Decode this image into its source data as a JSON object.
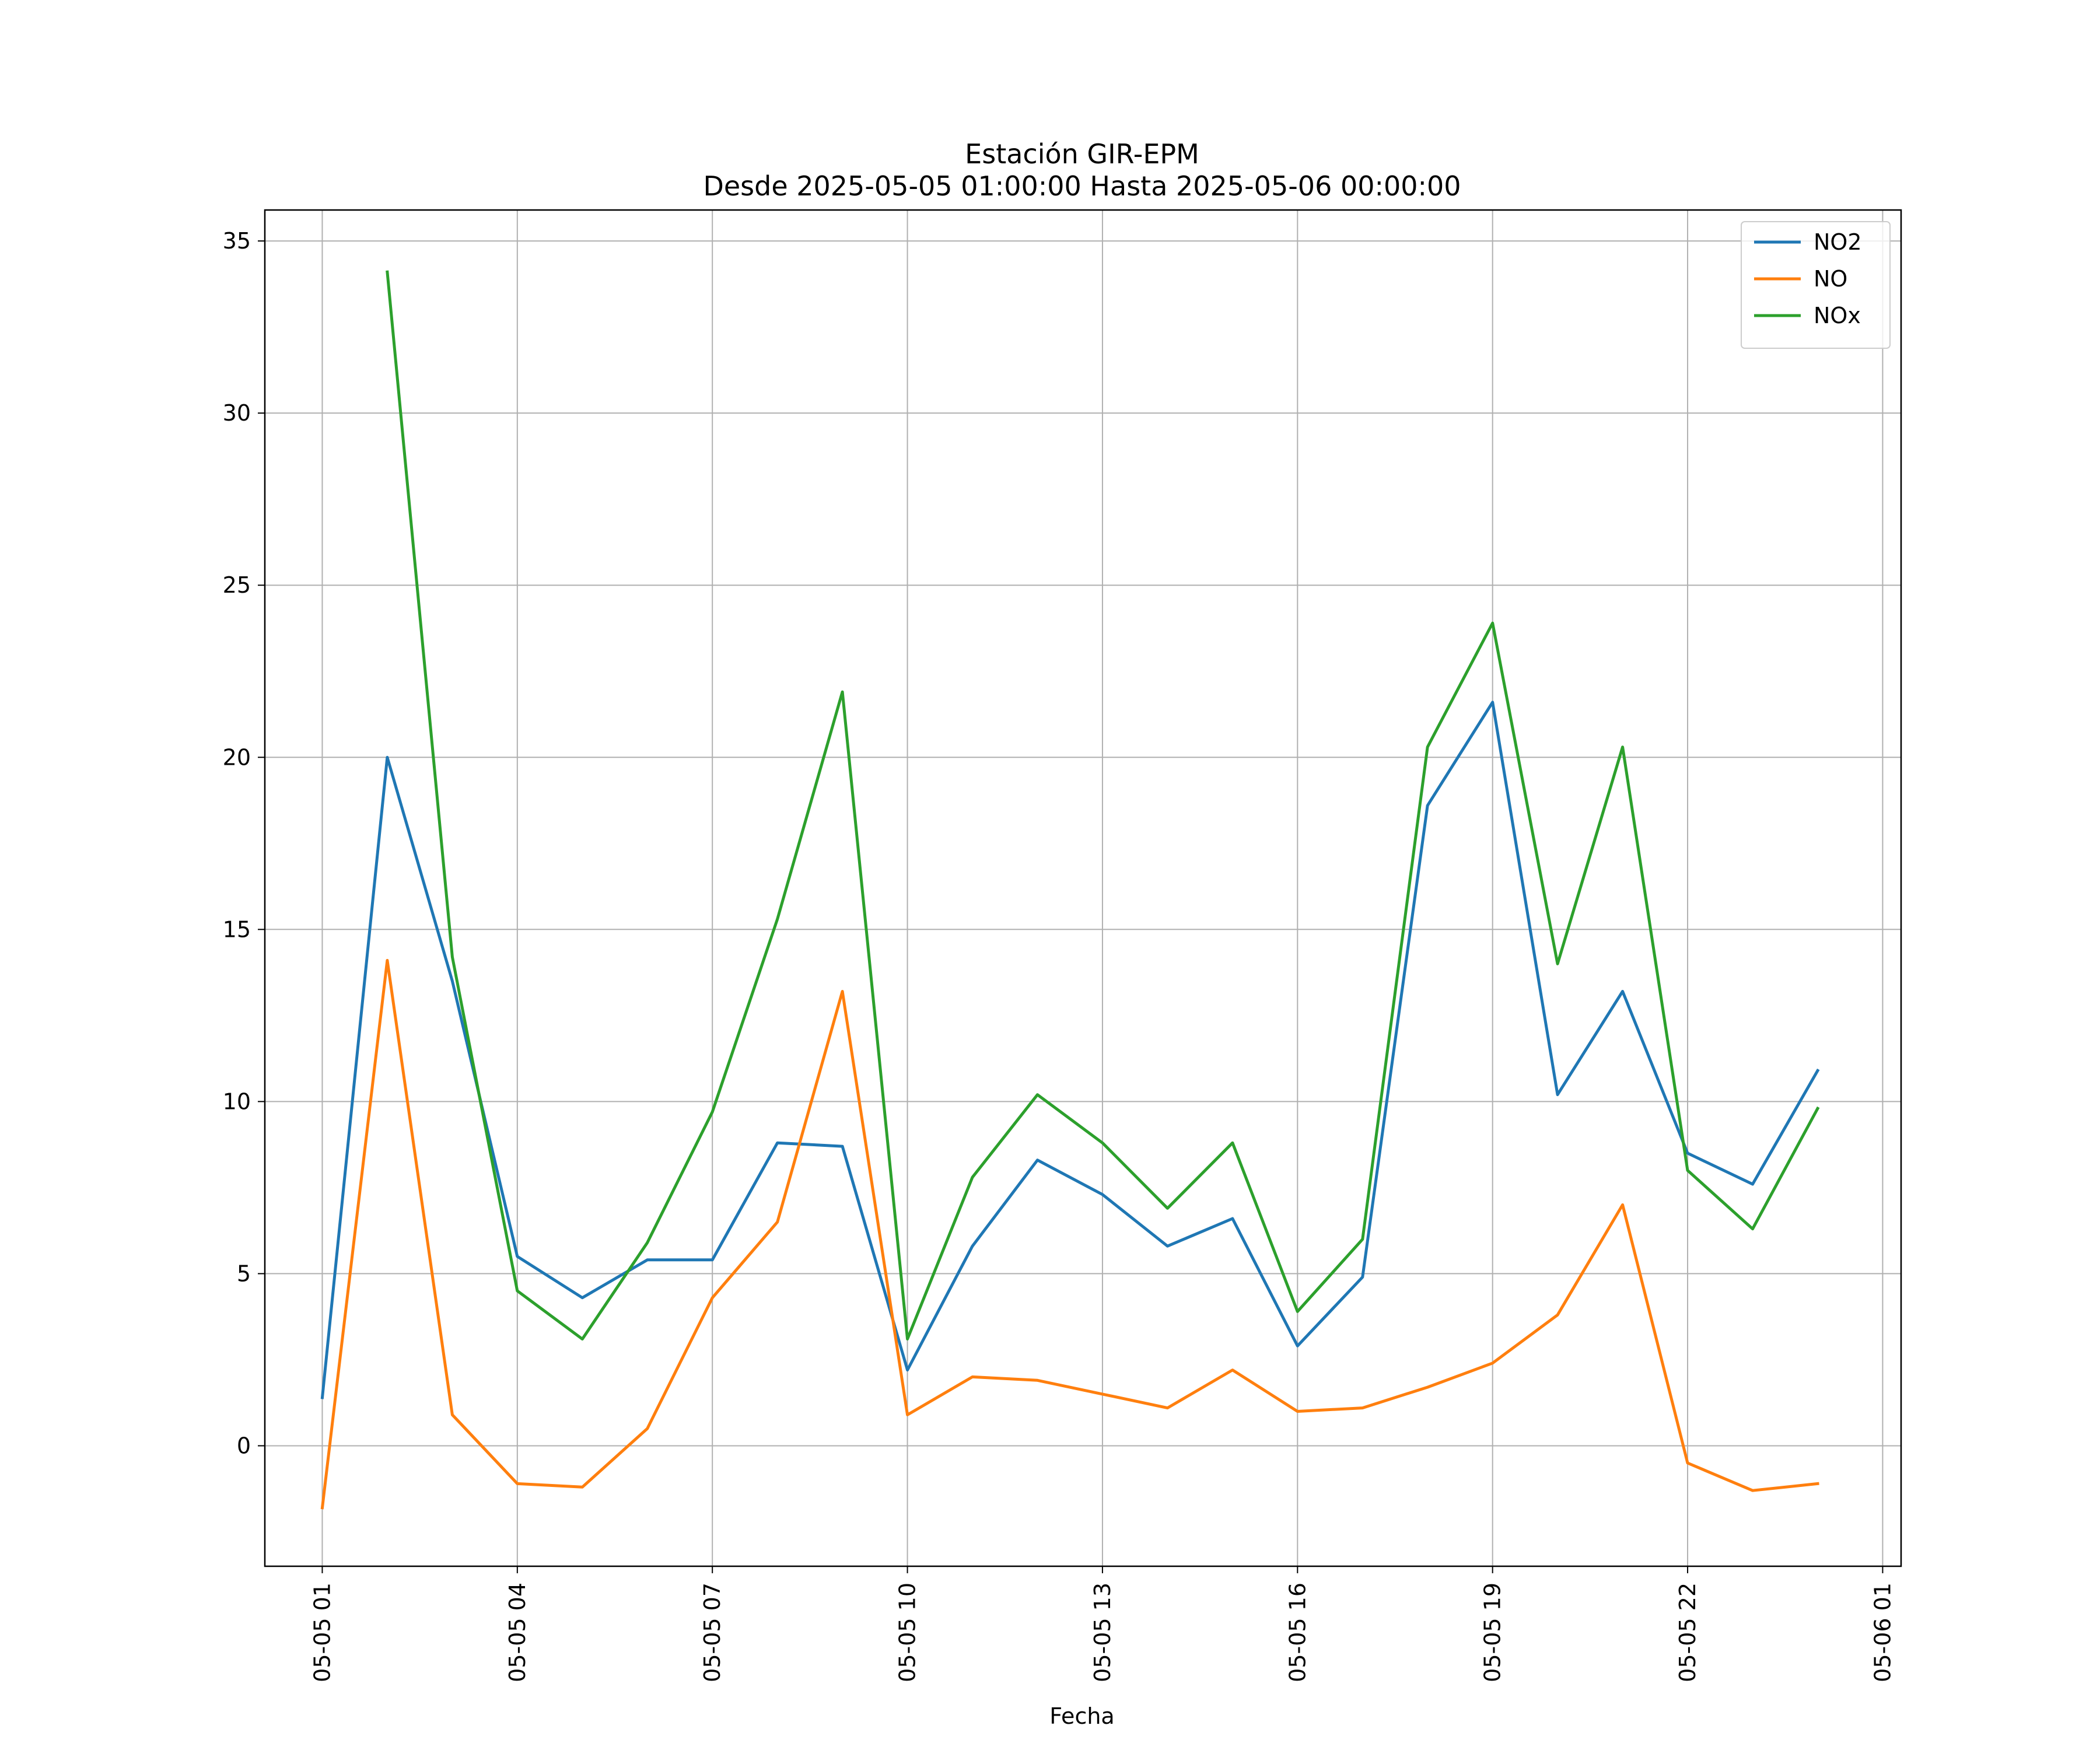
{
  "chart_data": {
    "type": "line",
    "title": "Estación GIR-EPM",
    "subtitle": "Desde 2025-05-05 01:00:00 Hasta 2025-05-06 00:00:00",
    "xlabel": "Fecha",
    "ylabel": "",
    "x": [
      "2025-05-05 01:00",
      "2025-05-05 02:00",
      "2025-05-05 03:00",
      "2025-05-05 04:00",
      "2025-05-05 05:00",
      "2025-05-05 06:00",
      "2025-05-05 07:00",
      "2025-05-05 08:00",
      "2025-05-05 09:00",
      "2025-05-05 10:00",
      "2025-05-05 11:00",
      "2025-05-05 12:00",
      "2025-05-05 13:00",
      "2025-05-05 14:00",
      "2025-05-05 15:00",
      "2025-05-05 16:00",
      "2025-05-05 17:00",
      "2025-05-05 18:00",
      "2025-05-05 19:00",
      "2025-05-05 20:00",
      "2025-05-05 21:00",
      "2025-05-05 22:00",
      "2025-05-05 23:00",
      "2025-05-06 00:00"
    ],
    "xlim": [
      "2025-05-05 00:07",
      "2025-05-06 01:17"
    ],
    "xticks": [
      "2025-05-05 01:00",
      "2025-05-05 04:00",
      "2025-05-05 07:00",
      "2025-05-05 10:00",
      "2025-05-05 13:00",
      "2025-05-05 16:00",
      "2025-05-05 19:00",
      "2025-05-05 22:00",
      "2025-05-06 01:00"
    ],
    "xtick_labels": [
      "05-05 01",
      "05-05 04",
      "05-05 07",
      "05-05 10",
      "05-05 13",
      "05-05 16",
      "05-05 19",
      "05-05 22",
      "05-06 01"
    ],
    "ylim": [
      -3.5,
      35.9
    ],
    "yticks": [
      0,
      5,
      10,
      15,
      20,
      25,
      30,
      35
    ],
    "ytick_labels": [
      "0",
      "5",
      "10",
      "15",
      "20",
      "25",
      "30",
      "35"
    ],
    "grid": true,
    "legend_position": "top-right",
    "series": [
      {
        "name": "NO2",
        "color": "#1f77b4",
        "values": [
          1.4,
          20.0,
          13.5,
          5.5,
          4.3,
          5.4,
          5.4,
          8.8,
          8.7,
          2.2,
          5.8,
          8.3,
          7.3,
          5.8,
          6.6,
          2.9,
          4.9,
          18.6,
          21.6,
          10.2,
          13.2,
          8.5,
          7.6,
          10.9
        ]
      },
      {
        "name": "NO",
        "color": "#ff7f0e",
        "values": [
          -1.8,
          14.1,
          0.9,
          -1.1,
          -1.2,
          0.5,
          4.3,
          6.5,
          13.2,
          0.9,
          2.0,
          1.9,
          1.5,
          1.1,
          2.2,
          1.0,
          1.1,
          1.7,
          2.4,
          3.8,
          7.0,
          -0.5,
          -1.3,
          -1.1
        ]
      },
      {
        "name": "NOx",
        "color": "#2ca02c",
        "values": [
          null,
          34.1,
          14.2,
          4.5,
          3.1,
          5.9,
          9.7,
          15.3,
          21.9,
          3.1,
          7.8,
          10.2,
          8.8,
          6.9,
          8.8,
          3.9,
          6.0,
          20.3,
          23.9,
          14.0,
          20.3,
          8.0,
          6.3,
          9.8
        ]
      }
    ]
  }
}
